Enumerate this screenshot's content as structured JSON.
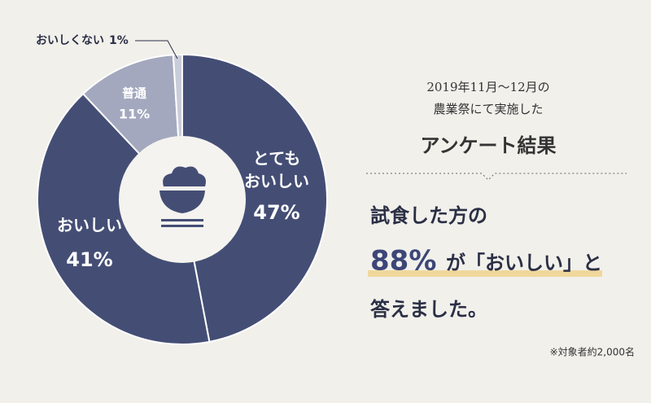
{
  "chart_data": {
    "type": "pie",
    "categories": [
      [
        "とても",
        "おいしい"
      ],
      [
        "おいしい"
      ],
      [
        "普通"
      ],
      [
        "おいしくない"
      ]
    ],
    "values": [
      47,
      41,
      11,
      1
    ],
    "value_labels": [
      "47%",
      "41%",
      "11%",
      "1%"
    ],
    "colors": [
      "#444e75",
      "#444e75",
      "#a3a8be",
      "#c9ccd9"
    ],
    "donut": true
  },
  "text": {
    "period": "2019年11月〜12月の",
    "place": "農業祭にて実施した",
    "heading": "アンケート結果",
    "lead": "試食した方の",
    "highlight": "88%",
    "quote": "が「おいしい」と",
    "end": "答えました。",
    "note": "※対象者約2,000名"
  }
}
